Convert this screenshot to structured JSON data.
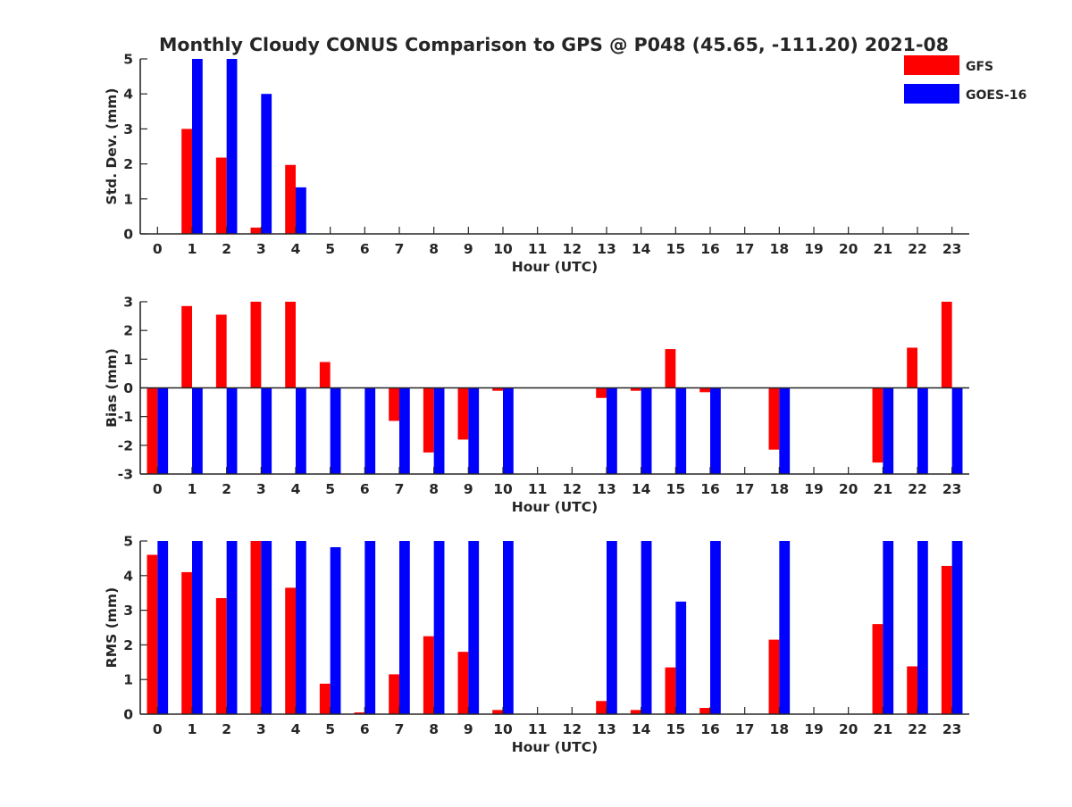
{
  "figure": {
    "title": "Monthly Cloudy CONUS Comparison to GPS @ P048 (45.65, -111.20) 2021-08",
    "legend": {
      "placement": "top-right",
      "entries": [
        {
          "label": "GFS",
          "color": "#ff0000"
        },
        {
          "label": "GOES-16",
          "color": "#0000ff"
        }
      ]
    }
  },
  "chart_data": [
    {
      "type": "bar",
      "title": "Monthly Cloudy CONUS Comparison to GPS @ P048 (45.65, -111.20) 2021-08",
      "xlabel": "Hour (UTC)",
      "ylabel": "Std. Dev. (mm)",
      "ylim": [
        0,
        5
      ],
      "yticks": [
        0,
        1,
        2,
        3,
        4,
        5
      ],
      "categories": [
        "0",
        "1",
        "2",
        "3",
        "4",
        "5",
        "6",
        "7",
        "8",
        "9",
        "10",
        "11",
        "12",
        "13",
        "14",
        "15",
        "16",
        "17",
        "18",
        "19",
        "20",
        "21",
        "22",
        "23"
      ],
      "series": [
        {
          "name": "GFS",
          "color": "#ff0000",
          "values": [
            null,
            3.0,
            2.18,
            0.18,
            1.97,
            null,
            null,
            null,
            null,
            null,
            null,
            null,
            null,
            null,
            null,
            null,
            null,
            null,
            null,
            null,
            null,
            null,
            null,
            null
          ]
        },
        {
          "name": "GOES-16",
          "color": "#0000ff",
          "values": [
            null,
            5.0,
            5.0,
            4.0,
            1.33,
            null,
            null,
            null,
            null,
            null,
            null,
            null,
            null,
            null,
            null,
            null,
            null,
            null,
            null,
            null,
            null,
            null,
            null,
            null
          ]
        }
      ],
      "grid": false
    },
    {
      "type": "bar",
      "title": "",
      "xlabel": "Hour (UTC)",
      "ylabel": "Bias (mm)",
      "ylim": [
        -3,
        3
      ],
      "yticks": [
        -3,
        -2,
        -1,
        0,
        1,
        2,
        3
      ],
      "categories": [
        "0",
        "1",
        "2",
        "3",
        "4",
        "5",
        "6",
        "7",
        "8",
        "9",
        "10",
        "11",
        "12",
        "13",
        "14",
        "15",
        "16",
        "17",
        "18",
        "19",
        "20",
        "21",
        "22",
        "23"
      ],
      "series": [
        {
          "name": "GFS",
          "color": "#ff0000",
          "values": [
            -3.0,
            2.85,
            2.55,
            3.0,
            3.0,
            0.9,
            null,
            -1.15,
            -2.25,
            -1.8,
            -0.1,
            null,
            null,
            -0.35,
            -0.1,
            1.35,
            -0.15,
            null,
            -2.15,
            null,
            null,
            -2.6,
            1.4,
            3.0
          ]
        },
        {
          "name": "GOES-16",
          "color": "#0000ff",
          "values": [
            -3.0,
            -3.0,
            -3.0,
            -3.0,
            -3.0,
            -3.0,
            -3.0,
            -3.0,
            -3.0,
            -3.0,
            -3.0,
            null,
            null,
            -3.0,
            -3.0,
            -3.0,
            -3.0,
            null,
            -3.0,
            null,
            null,
            -3.0,
            -3.0,
            -3.0
          ]
        }
      ],
      "grid": false
    },
    {
      "type": "bar",
      "title": "",
      "xlabel": "Hour (UTC)",
      "ylabel": "RMS (mm)",
      "ylim": [
        0,
        5
      ],
      "yticks": [
        0,
        1,
        2,
        3,
        4,
        5
      ],
      "categories": [
        "0",
        "1",
        "2",
        "3",
        "4",
        "5",
        "6",
        "7",
        "8",
        "9",
        "10",
        "11",
        "12",
        "13",
        "14",
        "15",
        "16",
        "17",
        "18",
        "19",
        "20",
        "21",
        "22",
        "23"
      ],
      "series": [
        {
          "name": "GFS",
          "color": "#ff0000",
          "values": [
            4.6,
            4.1,
            3.35,
            5.0,
            3.65,
            0.88,
            0.05,
            1.15,
            2.25,
            1.8,
            0.12,
            null,
            null,
            0.38,
            0.12,
            1.35,
            0.18,
            null,
            2.15,
            null,
            null,
            2.6,
            1.38,
            4.28
          ]
        },
        {
          "name": "GOES-16",
          "color": "#0000ff",
          "values": [
            5.0,
            5.0,
            5.0,
            5.0,
            5.0,
            4.82,
            5.0,
            5.0,
            5.0,
            5.0,
            5.0,
            null,
            null,
            5.0,
            5.0,
            3.25,
            5.0,
            null,
            5.0,
            null,
            null,
            5.0,
            5.0,
            5.0
          ]
        }
      ],
      "grid": false
    }
  ]
}
